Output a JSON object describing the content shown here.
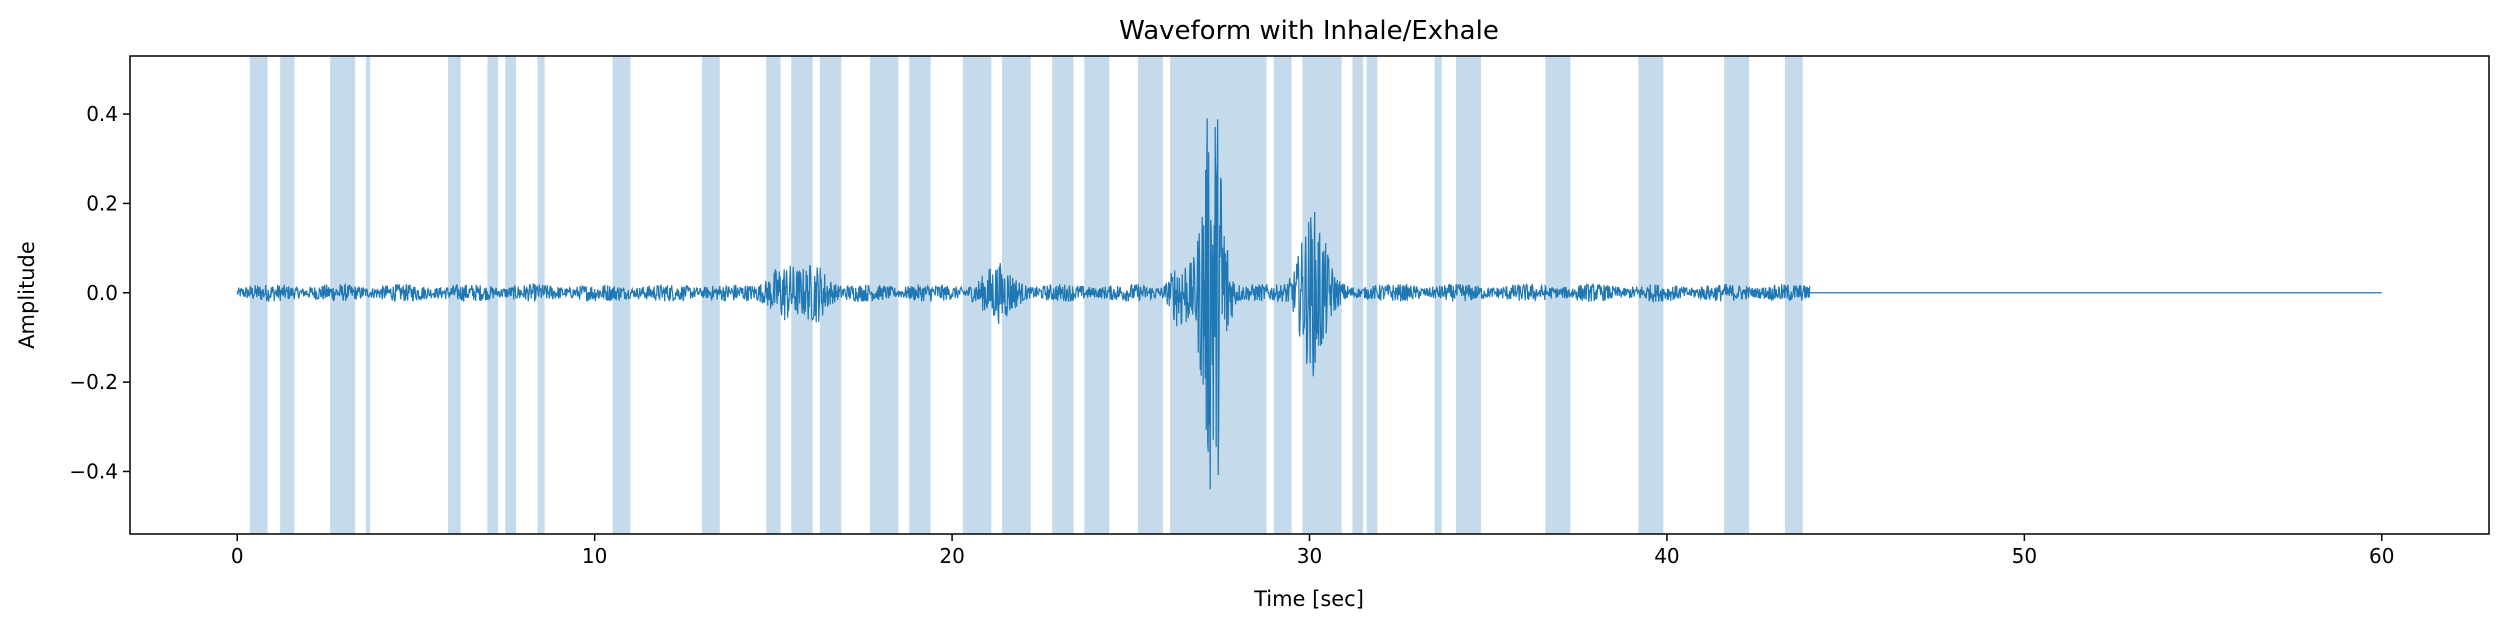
{
  "chart_data": {
    "type": "line",
    "title": "Waveform with Inhale/Exhale",
    "xlabel": "Time [sec]",
    "ylabel": "Amplitude",
    "xlim": [
      -3,
      63
    ],
    "ylim": [
      -0.54,
      0.53
    ],
    "xticks": [
      0,
      10,
      20,
      30,
      40,
      50,
      60
    ],
    "xtick_labels": [
      "0",
      "10",
      "20",
      "30",
      "40",
      "50",
      "60"
    ],
    "yticks": [
      -0.4,
      -0.2,
      0.0,
      0.2,
      0.4
    ],
    "ytick_labels": [
      "−0.4",
      "−0.2",
      "0.0",
      "0.2",
      "0.4"
    ],
    "grid": false,
    "line_color": "#1f77b4",
    "span_color": "#c5dbeb",
    "signal_end_sec": 44.0,
    "flat_end_sec": 60.0,
    "baseline_noise_amplitude": 0.02,
    "bursts": [
      {
        "t": 27.3,
        "amplitude": 0.47,
        "width": 0.35
      },
      {
        "t": 30.1,
        "amplitude": 0.17,
        "width": 0.45
      },
      {
        "t": 26.4,
        "amplitude": 0.07,
        "width": 0.3
      },
      {
        "t": 15.3,
        "amplitude": 0.05,
        "width": 0.5
      },
      {
        "t": 21.3,
        "amplitude": 0.05,
        "width": 0.5
      },
      {
        "t": 16.2,
        "amplitude": 0.05,
        "width": 0.4
      }
    ],
    "breath_intervals": [
      [
        0.35,
        0.85
      ],
      [
        1.2,
        1.6
      ],
      [
        2.6,
        3.3
      ],
      [
        3.6,
        3.72
      ],
      [
        5.9,
        6.25
      ],
      [
        7.0,
        7.3
      ],
      [
        7.5,
        7.8
      ],
      [
        8.4,
        8.6
      ],
      [
        10.5,
        11.0
      ],
      [
        13.0,
        13.5
      ],
      [
        14.8,
        15.2
      ],
      [
        15.5,
        16.1
      ],
      [
        16.3,
        16.9
      ],
      [
        17.7,
        18.5
      ],
      [
        18.8,
        19.4
      ],
      [
        20.3,
        21.1
      ],
      [
        21.4,
        22.2
      ],
      [
        22.8,
        23.4
      ],
      [
        23.7,
        24.4
      ],
      [
        25.2,
        25.9
      ],
      [
        26.1,
        28.8
      ],
      [
        29.0,
        29.5
      ],
      [
        29.8,
        30.9
      ],
      [
        31.2,
        31.5
      ],
      [
        31.6,
        31.9
      ],
      [
        33.5,
        33.7
      ],
      [
        34.1,
        34.8
      ],
      [
        36.6,
        37.3
      ],
      [
        39.2,
        39.9
      ],
      [
        41.6,
        42.3
      ],
      [
        43.3,
        43.8
      ]
    ]
  }
}
